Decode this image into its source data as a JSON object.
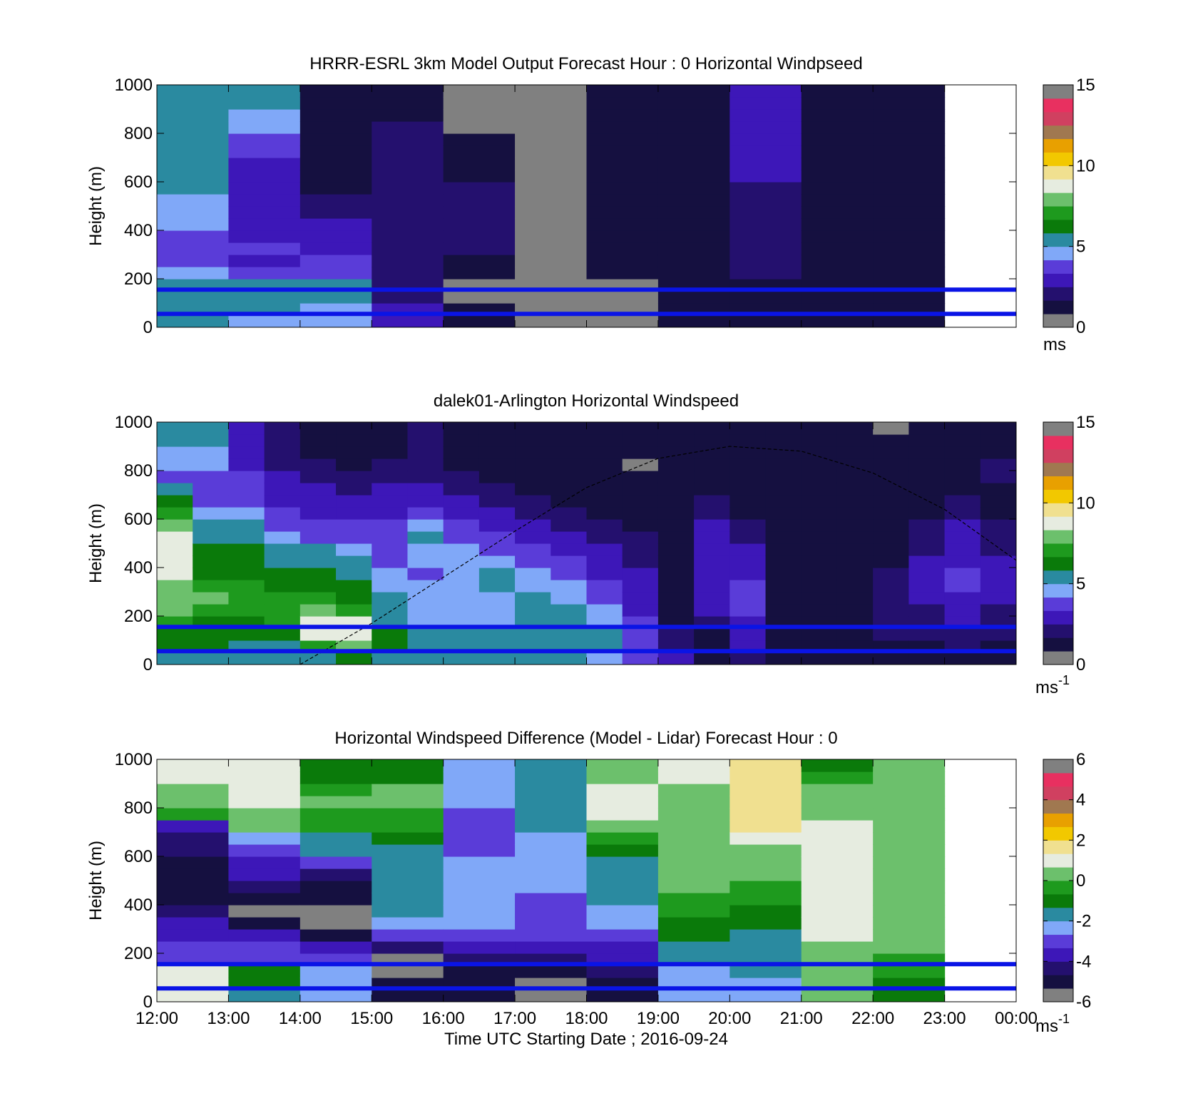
{
  "colors": {
    "speed_scale": [
      "#808080",
      "#151040",
      "#24106e",
      "#3d17b8",
      "#5a3cd8",
      "#80a8f8",
      "#2a8aa0",
      "#0a7a0a",
      "#1e9a1e",
      "#6cc06c",
      "#e6ece0",
      "#f0e090",
      "#f2c800",
      "#e8a000",
      "#a07850",
      "#d04060",
      "#e83060",
      "#808080"
    ],
    "diff_scale": [
      "#808080",
      "#151040",
      "#24106e",
      "#3d17b8",
      "#5a3cd8",
      "#80a8f8",
      "#2a8aa0",
      "#0a7a0a",
      "#1e9a1e",
      "#6cc06c",
      "#e6ece0",
      "#f0e090",
      "#f2c800",
      "#e8a000",
      "#a07850",
      "#d04060",
      "#e83060",
      "#808080"
    ],
    "reference_lines": "#0a14e6",
    "no_data": "#808080"
  },
  "chart_data": [
    {
      "type": "heatmap",
      "title": "HRRR-ESRL 3km Model Output   Forecast Hour : 0 Horizontal Windpseed",
      "ylabel": "Height (m)",
      "xlim": [
        "12:00",
        "00:00"
      ],
      "ylim": [
        0,
        1000
      ],
      "yticks": [
        "0",
        "200",
        "400",
        "600",
        "800",
        "1000"
      ],
      "colorbar": {
        "range": [
          0,
          15
        ],
        "ticks": [
          "0",
          "5",
          "10",
          "15"
        ],
        "unit": "ms"
      },
      "reference_lines_m": [
        55,
        155
      ],
      "x_hours": [
        12,
        13,
        14,
        15,
        16,
        17,
        18,
        19,
        20,
        21,
        22
      ],
      "heights_m": [
        50,
        100,
        150,
        200,
        250,
        300,
        350,
        400,
        450,
        500,
        550,
        600,
        650,
        700,
        750,
        800,
        850,
        900,
        950,
        1000
      ],
      "values": [
        [
          5.0,
          5.0,
          5.0,
          5.0,
          4.5,
          4.0,
          4.0,
          4.0,
          4.5,
          4.5,
          4.5,
          5.0,
          5.0,
          5.0,
          5.0,
          5.0,
          5.0,
          5.0,
          5.0,
          5.0
        ],
        [
          4.5,
          5.0,
          5.0,
          5.0,
          3.5,
          3.0,
          3.5,
          2.5,
          2.5,
          2.5,
          2.5,
          2.5,
          2.5,
          2.5,
          3.5,
          3.5,
          4.5,
          4.5,
          5.0,
          5.0
        ],
        [
          4.5,
          4.5,
          5.0,
          5.0,
          3.5,
          3.5,
          3.0,
          3.0,
          3.0,
          2.0,
          2.0,
          1.5,
          1.5,
          1.5,
          1.0,
          1.0,
          1.0,
          1.0,
          1.5,
          1.5
        ],
        [
          2.5,
          2.5,
          2.0,
          2.0,
          2.0,
          2.0,
          2.0,
          2.0,
          2.0,
          2.0,
          2.0,
          2.0,
          2.0,
          2.0,
          2.0,
          2.0,
          2.0,
          1.5,
          1.5,
          1.5
        ],
        [
          1.0,
          1.0,
          0.0,
          0.0,
          1.5,
          1.5,
          2.0,
          2.0,
          2.0,
          2.0,
          2.0,
          2.0,
          1.5,
          1.5,
          1.0,
          1.0,
          0.0,
          0.0,
          0.5,
          0.5
        ],
        [
          0.0,
          0.0,
          0.0,
          0.0,
          0.5,
          0.5,
          0.5,
          0.5,
          0.5,
          0.5,
          0.5,
          0.5,
          0.5,
          0.5,
          0.0,
          0.0,
          0.5,
          0.5,
          0.5,
          0.5
        ],
        [
          0.5,
          0.5,
          0.5,
          0.5,
          1.0,
          1.0,
          1.5,
          1.5,
          1.5,
          1.5,
          1.5,
          1.5,
          1.5,
          1.5,
          1.5,
          1.5,
          1.5,
          1.5,
          1.5,
          1.5
        ],
        [
          1.0,
          1.0,
          1.5,
          1.5,
          1.5,
          1.5,
          1.5,
          1.5,
          1.5,
          1.5,
          1.5,
          1.5,
          1.5,
          1.5,
          1.5,
          1.5,
          1.5,
          1.5,
          1.5,
          1.5
        ],
        [
          1.5,
          1.5,
          1.5,
          1.5,
          2.0,
          2.0,
          2.0,
          2.0,
          2.0,
          2.0,
          2.0,
          2.0,
          2.5,
          2.5,
          2.5,
          2.5,
          3.0,
          3.0,
          3.0,
          3.0
        ],
        [
          1.5,
          1.5,
          1.5,
          1.5,
          1.5,
          1.5,
          1.5,
          1.5,
          1.5,
          1.5,
          1.5,
          1.5,
          1.5,
          1.5,
          1.5,
          1.5,
          1.5,
          1.5,
          1.5,
          1.5
        ],
        [
          1.5,
          1.5,
          1.5,
          1.0,
          1.0,
          1.0,
          1.5,
          1.5,
          1.5,
          1.5,
          1.5,
          1.5,
          1.5,
          1.5,
          1.5,
          1.5,
          1.5,
          1.5,
          1.5,
          1.5
        ]
      ]
    },
    {
      "type": "heatmap",
      "title": "dalek01-Arlington  Horizontal Windspeed",
      "ylabel": "Height (m)",
      "xlim": [
        "12:00",
        "00:00"
      ],
      "ylim": [
        0,
        1000
      ],
      "yticks": [
        "0",
        "200",
        "400",
        "600",
        "800",
        "1000"
      ],
      "colorbar": {
        "range": [
          0,
          15
        ],
        "ticks": [
          "0",
          "5",
          "10",
          "15"
        ],
        "unit": "ms",
        "unit_exponent": "-1"
      },
      "reference_lines_m": [
        55,
        155
      ],
      "x_hours": [
        12.0,
        12.5,
        13.0,
        13.5,
        14.0,
        14.5,
        15.0,
        15.5,
        16.0,
        16.5,
        17.0,
        17.5,
        18.0,
        18.5,
        19.0,
        19.5,
        20.0,
        20.5,
        21.0,
        21.5,
        22.0,
        22.5,
        23.0,
        23.5
      ],
      "heights_m": [
        50,
        100,
        150,
        200,
        250,
        300,
        350,
        400,
        450,
        500,
        550,
        600,
        650,
        700,
        750,
        800,
        850,
        900,
        950,
        1000
      ],
      "values": [
        [
          5.0,
          6.0,
          6.5,
          7.0,
          8.0,
          8.0,
          8.0,
          8.5,
          9.0,
          9.0,
          8.5,
          8.0,
          7.0,
          6.0,
          5.0,
          4.0,
          4.5,
          4.5,
          5.0,
          5.0
        ],
        [
          5.0,
          6.0,
          6.0,
          6.5,
          7.0,
          7.5,
          7.0,
          6.5,
          6.5,
          6.0,
          5.5,
          5.0,
          4.5,
          4.0,
          3.5,
          4.0,
          4.5,
          4.5,
          5.0,
          5.0
        ],
        [
          5.0,
          5.5,
          6.0,
          6.5,
          7.0,
          7.0,
          7.0,
          6.5,
          6.5,
          6.0,
          5.5,
          5.5,
          4.5,
          4.0,
          3.5,
          3.5,
          3.0,
          3.0,
          2.5,
          2.5
        ],
        [
          5.0,
          5.5,
          6.5,
          7.0,
          7.0,
          7.0,
          6.5,
          6.0,
          5.5,
          5.0,
          4.5,
          4.0,
          3.5,
          3.0,
          2.5,
          2.5,
          2.0,
          2.0,
          2.0,
          2.0
        ],
        [
          5.0,
          7.0,
          8.5,
          9.0,
          8.0,
          7.0,
          6.5,
          6.0,
          5.5,
          5.0,
          4.0,
          3.5,
          3.0,
          2.5,
          2.5,
          2.0,
          2.0,
          1.5,
          1.5,
          1.5
        ],
        [
          6.0,
          8.0,
          9.0,
          8.5,
          7.0,
          6.5,
          6.0,
          5.5,
          5.0,
          4.5,
          4.0,
          3.5,
          3.0,
          2.5,
          2.0,
          2.0,
          1.5,
          1.5,
          1.5,
          1.5
        ],
        [
          5.0,
          6.0,
          6.0,
          5.5,
          5.0,
          5.0,
          4.5,
          4.5,
          4.0,
          4.0,
          4.0,
          3.5,
          3.0,
          2.5,
          2.5,
          2.0,
          2.0,
          1.5,
          1.5,
          1.5
        ],
        [
          5.0,
          5.0,
          5.0,
          4.5,
          4.5,
          4.5,
          4.5,
          4.0,
          4.5,
          4.5,
          5.0,
          4.5,
          3.5,
          3.0,
          2.5,
          2.0,
          2.0,
          2.0,
          2.0,
          2.0
        ],
        [
          5.0,
          5.0,
          5.0,
          4.5,
          4.5,
          4.5,
          4.5,
          4.5,
          4.5,
          4.5,
          4.0,
          3.5,
          3.0,
          2.5,
          2.0,
          2.0,
          1.5,
          1.5,
          1.5,
          1.5
        ],
        [
          5.0,
          5.0,
          5.0,
          4.5,
          4.5,
          4.5,
          5.0,
          5.0,
          4.5,
          4.0,
          3.5,
          3.0,
          2.5,
          2.0,
          2.0,
          1.5,
          1.5,
          1.5,
          1.5,
          1.5
        ],
        [
          5.0,
          5.0,
          5.0,
          5.0,
          5.0,
          5.0,
          4.5,
          4.5,
          4.0,
          3.5,
          3.0,
          2.5,
          2.0,
          2.0,
          1.5,
          1.0,
          1.0,
          1.0,
          1.0,
          1.0
        ],
        [
          5.0,
          5.0,
          5.0,
          5.0,
          5.0,
          4.5,
          4.5,
          4.0,
          3.5,
          3.0,
          2.5,
          2.0,
          2.0,
          1.5,
          1.5,
          1.5,
          1.0,
          1.0,
          1.0,
          1.0
        ],
        [
          4.5,
          5.0,
          5.0,
          4.5,
          4.5,
          4.0,
          3.5,
          3.0,
          2.5,
          2.5,
          2.0,
          2.0,
          1.5,
          1.5,
          1.5,
          1.0,
          1.0,
          1.0,
          1.0,
          1.0
        ],
        [
          3.5,
          4.0,
          3.5,
          3.5,
          3.0,
          3.0,
          2.5,
          2.5,
          2.0,
          2.0,
          2.0,
          1.5,
          1.5,
          1.5,
          1.5,
          1.0,
          0.0,
          1.0,
          1.0,
          1.0
        ],
        [
          2.5,
          2.0,
          2.0,
          1.5,
          1.5,
          1.5,
          1.5,
          1.5,
          1.0,
          1.0,
          1.0,
          1.0,
          1.0,
          1.0,
          1.0,
          1.0,
          1.0,
          1.0,
          1.5,
          1.5
        ],
        [
          1.5,
          1.5,
          1.5,
          2.0,
          2.5,
          2.5,
          3.0,
          3.0,
          3.0,
          3.0,
          2.5,
          2.5,
          2.0,
          2.0,
          1.5,
          1.5,
          1.5,
          1.5,
          1.5,
          1.5
        ],
        [
          2.0,
          2.5,
          3.0,
          3.0,
          3.5,
          3.5,
          3.5,
          3.0,
          2.5,
          2.5,
          2.0,
          2.0,
          1.5,
          1.5,
          1.5,
          1.0,
          1.0,
          1.0,
          1.0,
          1.5
        ],
        [
          1.5,
          1.5,
          1.5,
          1.5,
          1.5,
          1.5,
          1.5,
          1.5,
          1.5,
          1.5,
          1.0,
          1.0,
          1.0,
          1.0,
          1.0,
          1.0,
          1.0,
          1.5,
          1.5,
          1.5
        ],
        [
          1.5,
          1.5,
          1.5,
          1.5,
          1.5,
          1.5,
          1.5,
          1.5,
          1.5,
          1.5,
          1.5,
          1.5,
          1.0,
          1.0,
          1.0,
          1.0,
          1.0,
          1.0,
          1.5,
          1.5
        ],
        [
          1.5,
          1.5,
          1.5,
          1.5,
          1.5,
          1.5,
          1.5,
          1.5,
          1.5,
          1.5,
          1.5,
          1.5,
          1.5,
          1.5,
          1.5,
          1.5,
          1.5,
          1.5,
          1.5,
          1.5
        ],
        [
          1.5,
          1.5,
          2.0,
          2.0,
          2.0,
          2.0,
          2.0,
          2.0,
          1.5,
          1.5,
          1.5,
          1.5,
          1.5,
          1.5,
          1.5,
          1.5,
          1.0,
          1.0,
          1.0,
          0.0
        ],
        [
          1.5,
          1.5,
          2.0,
          2.0,
          2.0,
          2.5,
          2.5,
          2.5,
          2.5,
          2.0,
          2.0,
          2.0,
          1.5,
          1.5,
          1.5,
          1.5,
          1.5,
          1.5,
          1.5,
          1.5
        ],
        [
          1.5,
          2.0,
          2.0,
          2.5,
          2.5,
          3.0,
          3.5,
          3.5,
          3.0,
          3.0,
          2.5,
          2.5,
          2.0,
          2.0,
          1.5,
          1.5,
          1.5,
          1.5,
          1.5,
          1.5
        ],
        [
          1.5,
          1.5,
          2.0,
          2.0,
          2.0,
          2.5,
          2.5,
          2.5,
          2.5,
          2.0,
          2.0,
          2.0,
          1.5,
          1.5,
          1.5,
          2.0,
          2.0,
          1.5,
          1.5,
          1.5
        ]
      ],
      "curve_x_hours": [
        14.0,
        15.0,
        16.0,
        17.0,
        18.0,
        19.0,
        20.0,
        21.0,
        22.0,
        23.0,
        24.0
      ],
      "curve_heights_m": [
        0,
        170,
        360,
        550,
        730,
        850,
        900,
        880,
        790,
        640,
        430
      ]
    },
    {
      "type": "heatmap",
      "title": "Horizontal Windspeed Difference (Model - Lidar) Forecast Hour : 0",
      "xlabel": "Time UTC  Starting Date ; 2016-09-24",
      "ylabel": "Height (m)",
      "xticks": [
        "12:00",
        "13:00",
        "14:00",
        "15:00",
        "16:00",
        "17:00",
        "18:00",
        "19:00",
        "20:00",
        "21:00",
        "22:00",
        "23:00",
        "00:00"
      ],
      "xlim": [
        "12:00",
        "00:00"
      ],
      "ylim": [
        0,
        1000
      ],
      "yticks": [
        "0",
        "200",
        "400",
        "600",
        "800",
        "1000"
      ],
      "colorbar": {
        "range": [
          -6,
          6
        ],
        "ticks": [
          "-6",
          "-4",
          "-2",
          "0",
          "2",
          "4",
          "6"
        ],
        "unit": "ms",
        "unit_exponent": "-1"
      },
      "reference_lines_m": [
        55,
        155
      ],
      "x_hours": [
        12,
        13,
        14,
        15,
        16,
        17,
        18,
        19,
        20,
        21,
        22
      ],
      "heights_m": [
        50,
        100,
        150,
        200,
        250,
        300,
        350,
        400,
        450,
        500,
        550,
        600,
        650,
        700,
        750,
        800,
        850,
        900,
        950,
        1000
      ],
      "values": [
        [
          1.0,
          1.0,
          1.0,
          -3.0,
          -3.0,
          -3.5,
          -4.0,
          -4.5,
          -5.0,
          -5.0,
          -5.0,
          -5.0,
          -4.5,
          -4.5,
          -3.5,
          -0.5,
          0.0,
          0.5,
          1.0,
          1.0
        ],
        [
          -1.5,
          -1.0,
          -1.0,
          -3.0,
          -3.0,
          -4.0,
          -5.0,
          -5.5,
          -5.0,
          -4.5,
          -4.0,
          -3.5,
          -3.0,
          -2.5,
          0.0,
          0.5,
          1.0,
          1.0,
          1.0,
          1.0
        ],
        [
          -2.5,
          -2.5,
          -2.5,
          -3.0,
          -4.0,
          -5.0,
          -5.5,
          -5.5,
          -5.0,
          -5.0,
          -4.5,
          -3.0,
          -2.0,
          -1.5,
          -0.5,
          -0.5,
          0.0,
          -0.5,
          -1.0,
          -1.0
        ],
        [
          -5.0,
          -5.0,
          -6.0,
          -6.0,
          -4.5,
          -3.0,
          -2.5,
          -2.0,
          -2.0,
          -1.5,
          -1.5,
          -1.5,
          -1.5,
          -1.0,
          -0.5,
          -0.5,
          0.0,
          0.0,
          -1.0,
          -1.0
        ],
        [
          -5.0,
          -5.0,
          -5.0,
          -4.5,
          -4.0,
          -3.0,
          -2.5,
          -2.5,
          -2.5,
          -2.5,
          -2.5,
          -2.5,
          -3.0,
          -3.0,
          -3.0,
          -3.0,
          -2.5,
          -2.5,
          -2.5,
          -2.5
        ],
        [
          -5.5,
          -5.5,
          -5.0,
          -4.5,
          -4.0,
          -3.0,
          -3.0,
          -3.0,
          -3.0,
          -2.5,
          -2.5,
          -2.5,
          -2.5,
          -2.5,
          -2.0,
          -2.0,
          -2.0,
          -1.5,
          -1.5,
          -1.5
        ],
        [
          -5.0,
          -5.0,
          -4.5,
          -4.0,
          -3.5,
          -3.0,
          -2.5,
          -2.5,
          -2.0,
          -2.0,
          -1.5,
          -1.5,
          -1.0,
          -0.5,
          0.5,
          1.0,
          1.0,
          1.0,
          0.5,
          0.5
        ],
        [
          -2.5,
          -2.5,
          -2.5,
          -2.0,
          -1.5,
          -1.0,
          -1.0,
          -0.5,
          -0.5,
          0.0,
          0.0,
          0.0,
          0.5,
          0.5,
          0.5,
          0.5,
          0.0,
          0.5,
          1.0,
          1.0
        ],
        [
          -2.5,
          -2.5,
          -2.0,
          -2.0,
          -1.5,
          -1.5,
          -1.0,
          -1.0,
          -0.5,
          -0.5,
          0.0,
          0.5,
          0.5,
          1.0,
          1.5,
          1.5,
          1.5,
          1.5,
          1.5,
          1.5
        ],
        [
          0.5,
          0.5,
          0.5,
          0.5,
          0.5,
          1.0,
          1.0,
          1.0,
          1.0,
          1.0,
          1.0,
          1.0,
          1.0,
          1.0,
          1.0,
          0.5,
          0.0,
          0.0,
          -0.5,
          -1.0
        ],
        [
          -1.0,
          -1.0,
          -0.5,
          -0.5,
          0.0,
          0.0,
          0.0,
          0.0,
          0.5,
          0.5,
          0.5,
          0.5,
          0.5,
          0.5,
          0.5,
          0.5,
          0.5,
          0.5,
          0.5,
          0.5
        ]
      ]
    }
  ]
}
